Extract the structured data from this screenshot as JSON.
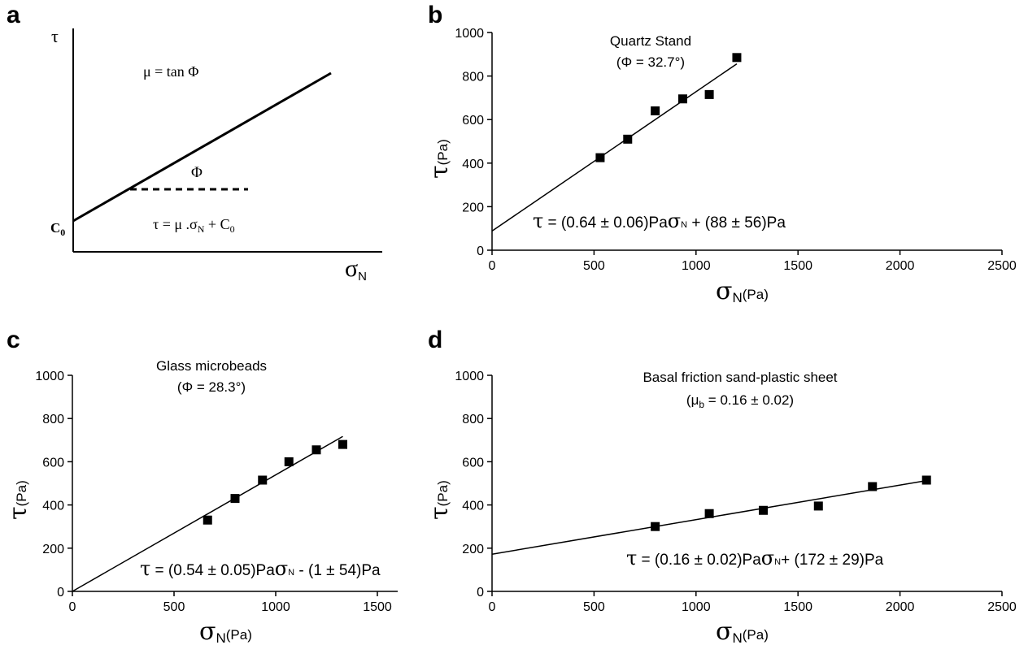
{
  "chart_data": [
    {
      "panel": "a",
      "type": "line",
      "schematic": true,
      "ylabel": "τ",
      "xlabel": "σ",
      "xlabel_sub": "N",
      "intercept_label": "C",
      "intercept_sub": "0",
      "angle_label": "Φ",
      "slope_formula": "μ = tan Φ",
      "equation": "τ = μ .σ",
      "equation_sub": "N",
      "equation_tail": " + C",
      "equation_tail_sub": "0"
    },
    {
      "panel": "b",
      "type": "scatter",
      "title": "Quartz Stand",
      "subtitle": "(Φ = 32.7°)",
      "xlabel": "σ",
      "xlabel_sub": "N",
      "xlabel_unit": "(Pa)",
      "ylabel": "τ",
      "ylabel_unit": "(Pa)",
      "xlim": [
        0,
        2500
      ],
      "ylim": [
        0,
        1000
      ],
      "xticks": [
        "0",
        "500",
        "1000",
        "1500",
        "2000",
        "2500"
      ],
      "yticks": [
        "0",
        "200",
        "400",
        "600",
        "800",
        "1000"
      ],
      "points": [
        [
          530,
          425
        ],
        [
          665,
          510
        ],
        [
          800,
          640
        ],
        [
          935,
          695
        ],
        [
          1065,
          715
        ],
        [
          1200,
          885
        ]
      ],
      "fit": {
        "slope": 0.64,
        "intercept": 88,
        "x_range": [
          0,
          1200
        ]
      },
      "equation": {
        "tau": "τ",
        "lhs": " = (0.64 ± 0.06)Pa",
        "sigma": "σ",
        "sub": "N",
        "rhs": " + (88 ± 56)Pa"
      }
    },
    {
      "panel": "c",
      "type": "scatter",
      "title": "Glass microbeads",
      "subtitle": "(Φ = 28.3°)",
      "xlabel": "σ",
      "xlabel_sub": "N",
      "xlabel_unit": "(Pa)",
      "ylabel": "τ",
      "ylabel_unit": "(Pa)",
      "xlim": [
        0,
        1600
      ],
      "ylim": [
        0,
        1000
      ],
      "xticks": [
        "0",
        "500",
        "1000",
        "1500"
      ],
      "yticks": [
        "0",
        "200",
        "400",
        "600",
        "800",
        "1000"
      ],
      "points": [
        [
          665,
          330
        ],
        [
          800,
          430
        ],
        [
          935,
          515
        ],
        [
          1065,
          600
        ],
        [
          1200,
          655
        ],
        [
          1330,
          680
        ]
      ],
      "fit": {
        "slope": 0.54,
        "intercept": -1,
        "x_range": [
          0,
          1330
        ]
      },
      "equation": {
        "tau": "τ",
        "lhs": " = (0.54 ± 0.05)Pa",
        "sigma": "σ",
        "sub": "N",
        "rhs": " - (1 ± 54)Pa"
      }
    },
    {
      "panel": "d",
      "type": "scatter",
      "title": "Basal friction sand-plastic sheet",
      "subtitle_pre": "(μ",
      "subtitle_sub": "b",
      "subtitle_post": " = 0.16 ± 0.02)",
      "xlabel": "σ",
      "xlabel_sub": "N",
      "xlabel_unit": "(Pa)",
      "ylabel": "τ",
      "ylabel_unit": "(Pa)",
      "xlim": [
        0,
        2500
      ],
      "ylim": [
        0,
        1000
      ],
      "xticks": [
        "0",
        "500",
        "1000",
        "1500",
        "2000",
        "2500"
      ],
      "yticks": [
        "0",
        "200",
        "400",
        "600",
        "800",
        "1000"
      ],
      "points": [
        [
          800,
          300
        ],
        [
          1065,
          360
        ],
        [
          1330,
          375
        ],
        [
          1600,
          395
        ],
        [
          1865,
          485
        ],
        [
          2130,
          515
        ]
      ],
      "fit": {
        "slope": 0.16,
        "intercept": 172,
        "x_range": [
          0,
          2130
        ]
      },
      "equation": {
        "tau": "τ",
        "lhs": " = (0.16 ± 0.02)Pa",
        "sigma": "σ",
        "sub": "N",
        "rhs": "+ (172 ± 29)Pa"
      }
    }
  ]
}
